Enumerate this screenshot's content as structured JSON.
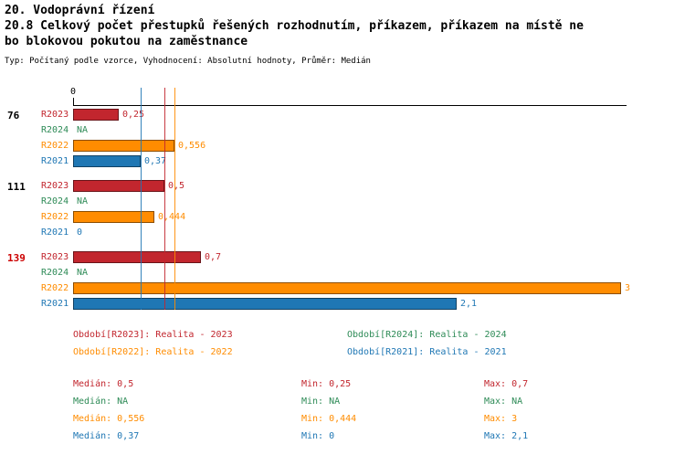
{
  "title": {
    "line1": "20. Vodoprávní řízení",
    "line2": "20.8 Celkový počet přestupků řešených rozhodnutím, příkazem, příkazem na místě ne",
    "line3": "bo blokovou pokutou na zaměstnance",
    "meta": "Typ: Počítaný podle vzorce, Vyhodnocení: Absolutní hodnoty, Průměr: Medián"
  },
  "series": {
    "R2023": {
      "label": "R2023",
      "color": "#c2262e"
    },
    "R2024": {
      "label": "R2024",
      "color": "#2e8b57"
    },
    "R2022": {
      "label": "R2022",
      "color": "#ff8c00"
    },
    "R2021": {
      "label": "R2021",
      "color": "#1f77b4"
    }
  },
  "chart_data": {
    "type": "bar",
    "orientation": "horizontal",
    "title": "20.8 Celkový počet přestupků řešených rozhodnutím, příkazem, příkazem na místě nebo blokovou pokutou na zaměstnance",
    "x_axis": {
      "ticks": [
        "0"
      ],
      "min": 0,
      "max": 3
    },
    "series_order": [
      "R2023",
      "R2024",
      "R2022",
      "R2021"
    ],
    "groups": [
      {
        "label": "76",
        "label_color": "#000000",
        "values": {
          "R2023": 0.25,
          "R2024": null,
          "R2022": 0.556,
          "R2021": 0.37
        },
        "displays": {
          "R2023": "0,25",
          "R2024": "NA",
          "R2022": "0,556",
          "R2021": "0,37"
        }
      },
      {
        "label": "111",
        "label_color": "#000000",
        "values": {
          "R2023": 0.5,
          "R2024": null,
          "R2022": 0.444,
          "R2021": 0
        },
        "displays": {
          "R2023": "0,5",
          "R2024": "NA",
          "R2022": "0,444",
          "R2021": "0"
        }
      },
      {
        "label": "139",
        "label_color": "#cc0000",
        "values": {
          "R2023": 0.7,
          "R2024": null,
          "R2022": 3,
          "R2021": 2.1
        },
        "displays": {
          "R2023": "0,7",
          "R2024": "NA",
          "R2022": "3",
          "R2021": "2,1"
        }
      }
    ],
    "median_lines": [
      {
        "series": "R2021",
        "value": 0.37
      },
      {
        "series": "R2023",
        "value": 0.5
      },
      {
        "series": "R2022",
        "value": 0.556
      }
    ]
  },
  "legend": [
    {
      "series": "R2023",
      "text": "Období[R2023]: Realita - 2023"
    },
    {
      "series": "R2024",
      "text": "Období[R2024]: Realita - 2024"
    },
    {
      "series": "R2022",
      "text": "Období[R2022]: Realita - 2022"
    },
    {
      "series": "R2021",
      "text": "Období[R2021]: Realita - 2021"
    }
  ],
  "stats": [
    {
      "series": "R2023",
      "median": "Medián: 0,5",
      "min": "Min: 0,25",
      "max": "Max: 0,7"
    },
    {
      "series": "R2024",
      "median": "Medián: NA",
      "min": "Min: NA",
      "max": "Max: NA"
    },
    {
      "series": "R2022",
      "median": "Medián: 0,556",
      "min": "Min: 0,444",
      "max": "Max: 3"
    },
    {
      "series": "R2021",
      "median": "Medián: 0,37",
      "min": "Min: 0",
      "max": "Max: 2,1"
    }
  ]
}
